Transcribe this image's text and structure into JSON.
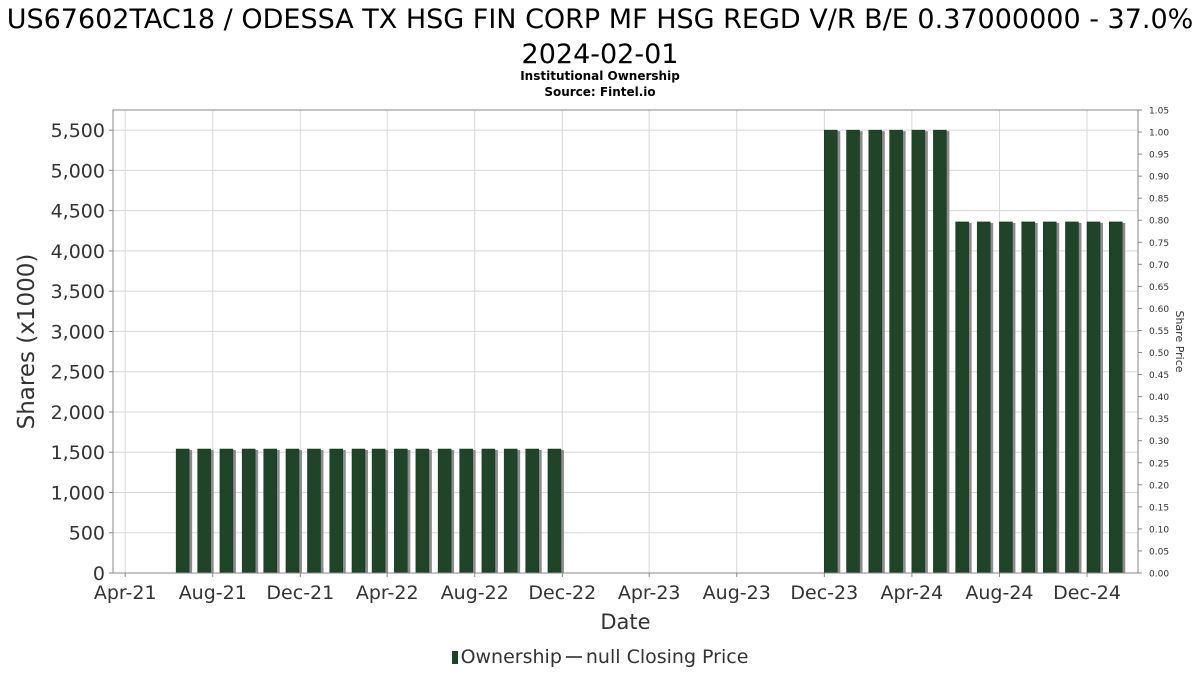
{
  "title": "US67602TAC18 / ODESSA TX HSG FIN CORP MF HSG REGD V/R B/E 0.37000000 - 37.0% 2024-02-01",
  "subtitle_line1": "Institutional Ownership",
  "subtitle_line2": "Source: Fintel.io",
  "legend": {
    "series1": "Ownership",
    "series2": "null Closing Price"
  },
  "colors": {
    "bar": "#1f4427",
    "bar_shadow": "#8c8c8c",
    "grid": "#d8d8d8"
  },
  "chart_data": {
    "type": "bar",
    "xlabel": "Date",
    "ylabel": "Shares (x1000)",
    "y2label": "Share Price",
    "ylim": [
      0,
      5750
    ],
    "y2lim": [
      0,
      1.05
    ],
    "xlim": [
      "2021-03-15",
      "2025-02-10"
    ],
    "yticks": [
      "0",
      "500",
      "1,000",
      "1,500",
      "2,000",
      "2,500",
      "3,000",
      "3,500",
      "4,000",
      "4,500",
      "5,000",
      "5,500"
    ],
    "y2ticks": [
      "0.00",
      "0.05",
      "0.10",
      "0.15",
      "0.20",
      "0.25",
      "0.30",
      "0.35",
      "0.40",
      "0.45",
      "0.50",
      "0.55",
      "0.60",
      "0.65",
      "0.70",
      "0.75",
      "0.80",
      "0.85",
      "0.90",
      "0.95",
      "1.00",
      "1.05"
    ],
    "xticks": [
      {
        "date": "2021-04-01",
        "label": "Apr-21"
      },
      {
        "date": "2021-08-01",
        "label": "Aug-21"
      },
      {
        "date": "2021-12-01",
        "label": "Dec-21"
      },
      {
        "date": "2022-04-01",
        "label": "Apr-22"
      },
      {
        "date": "2022-08-01",
        "label": "Aug-22"
      },
      {
        "date": "2022-12-01",
        "label": "Dec-22"
      },
      {
        "date": "2023-04-01",
        "label": "Apr-23"
      },
      {
        "date": "2023-08-01",
        "label": "Aug-23"
      },
      {
        "date": "2023-12-01",
        "label": "Dec-23"
      },
      {
        "date": "2024-04-01",
        "label": "Apr-24"
      },
      {
        "date": "2024-08-01",
        "label": "Aug-24"
      },
      {
        "date": "2024-12-01",
        "label": "Dec-24"
      }
    ],
    "series": [
      {
        "name": "Ownership",
        "points": [
          {
            "x": "2021-06-20",
            "y": 1540
          },
          {
            "x": "2021-07-20",
            "y": 1540
          },
          {
            "x": "2021-08-20",
            "y": 1540
          },
          {
            "x": "2021-09-20",
            "y": 1540
          },
          {
            "x": "2021-10-20",
            "y": 1540
          },
          {
            "x": "2021-11-20",
            "y": 1540
          },
          {
            "x": "2021-12-20",
            "y": 1540
          },
          {
            "x": "2022-01-20",
            "y": 1540
          },
          {
            "x": "2022-02-20",
            "y": 1540
          },
          {
            "x": "2022-03-20",
            "y": 1540
          },
          {
            "x": "2022-04-20",
            "y": 1540
          },
          {
            "x": "2022-05-20",
            "y": 1540
          },
          {
            "x": "2022-06-20",
            "y": 1540
          },
          {
            "x": "2022-07-20",
            "y": 1540
          },
          {
            "x": "2022-08-20",
            "y": 1540
          },
          {
            "x": "2022-09-20",
            "y": 1540
          },
          {
            "x": "2022-10-20",
            "y": 1540
          },
          {
            "x": "2022-11-20",
            "y": 1540
          },
          {
            "x": "2023-12-10",
            "y": 5500
          },
          {
            "x": "2024-01-10",
            "y": 5500
          },
          {
            "x": "2024-02-10",
            "y": 5500
          },
          {
            "x": "2024-03-10",
            "y": 5500
          },
          {
            "x": "2024-04-10",
            "y": 5500
          },
          {
            "x": "2024-05-10",
            "y": 5500
          },
          {
            "x": "2024-06-10",
            "y": 4360
          },
          {
            "x": "2024-07-10",
            "y": 4360
          },
          {
            "x": "2024-08-10",
            "y": 4360
          },
          {
            "x": "2024-09-10",
            "y": 4360
          },
          {
            "x": "2024-10-10",
            "y": 4360
          },
          {
            "x": "2024-11-10",
            "y": 4360
          },
          {
            "x": "2024-12-10",
            "y": 4360
          },
          {
            "x": "2025-01-10",
            "y": 4360
          }
        ]
      }
    ]
  }
}
